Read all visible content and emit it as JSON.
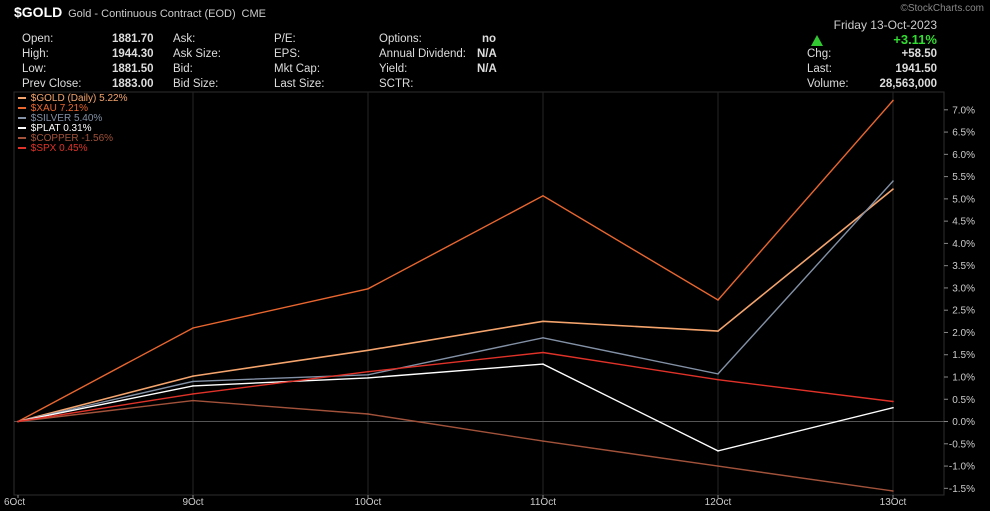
{
  "header": {
    "symbol": "$GOLD",
    "subtitle": "Gold - Continuous Contract (EOD)",
    "exchange": "CME",
    "watermark": "©StockCharts.com"
  },
  "quote": {
    "col1": [
      {
        "label": "Open:",
        "value": "1881.70"
      },
      {
        "label": "High:",
        "value": "1944.30"
      },
      {
        "label": "Low:",
        "value": "1881.50"
      },
      {
        "label": "Prev Close:",
        "value": "1883.00"
      }
    ],
    "col2": [
      "Ask:",
      "Ask Size:",
      "Bid:",
      "Bid Size:"
    ],
    "col3": [
      "P/E:",
      "EPS:",
      "Mkt Cap:",
      "Last Size:"
    ],
    "col4": [
      {
        "label": "Options:",
        "value": "no"
      },
      {
        "label": "Annual Dividend:",
        "value": "N/A"
      },
      {
        "label": "Yield:",
        "value": "N/A"
      },
      {
        "label": "SCTR:",
        "value": ""
      }
    ]
  },
  "summary": {
    "date": "Friday  13-Oct-2023",
    "change_pct": "+3.11%",
    "chg_label": "Chg:",
    "chg_value": "+58.50",
    "last_label": "Last:",
    "last_value": "1941.50",
    "volume_label": "Volume:",
    "volume_value": "28,563,000",
    "up_color": "#32dc32"
  },
  "chart_data": {
    "type": "line",
    "categories": [
      "6Oct",
      "9Oct",
      "10Oct",
      "11Oct",
      "12Oct",
      "13Oct"
    ],
    "y_unit": "%",
    "ylim": [
      -1.65,
      7.4
    ],
    "yticks": [
      7.0,
      6.5,
      6.0,
      5.5,
      5.0,
      4.5,
      4.0,
      3.5,
      3.0,
      2.5,
      2.0,
      1.5,
      1.0,
      0.5,
      0.0,
      -0.5,
      -1.0,
      -1.5
    ],
    "ytick_labels": [
      "7.0%",
      "6.5%",
      "6.0%",
      "5.5%",
      "5.0%",
      "4.5%",
      "4.0%",
      "3.5%",
      "3.0%",
      "2.5%",
      "2.0%",
      "1.5%",
      "1.0%",
      "0.5%",
      "0.0%",
      "-0.5%",
      "-1.0%",
      "-1.5%"
    ],
    "grid": "vertical",
    "legend_position": "top-left",
    "series": [
      {
        "name": "$GOLD (Daily)",
        "label": "5.22%",
        "color": "#f4a46c",
        "width": 1.6,
        "values": [
          0,
          1.02,
          1.6,
          2.25,
          2.03,
          5.22
        ]
      },
      {
        "name": "$XAU",
        "label": "7.21%",
        "color": "#e9662f",
        "width": 1.4,
        "values": [
          0,
          2.1,
          2.98,
          5.07,
          2.73,
          7.21
        ]
      },
      {
        "name": "$SILVER",
        "label": "5.40%",
        "color": "#8391a6",
        "width": 1.4,
        "values": [
          0,
          0.9,
          1.05,
          1.88,
          1.07,
          5.4
        ]
      },
      {
        "name": "$PLAT",
        "label": "0.31%",
        "color": "#ffffff",
        "width": 1.4,
        "values": [
          0,
          0.8,
          0.98,
          1.29,
          -0.66,
          0.31
        ]
      },
      {
        "name": "$COPPER",
        "label": "-1.56%",
        "color": "#a2523a",
        "width": 1.4,
        "values": [
          0,
          0.47,
          0.17,
          -0.44,
          -1.0,
          -1.56
        ]
      },
      {
        "name": "$SPX",
        "label": "0.45%",
        "color": "#e03228",
        "width": 1.4,
        "values": [
          0,
          0.62,
          1.12,
          1.55,
          0.94,
          0.45
        ]
      }
    ]
  }
}
